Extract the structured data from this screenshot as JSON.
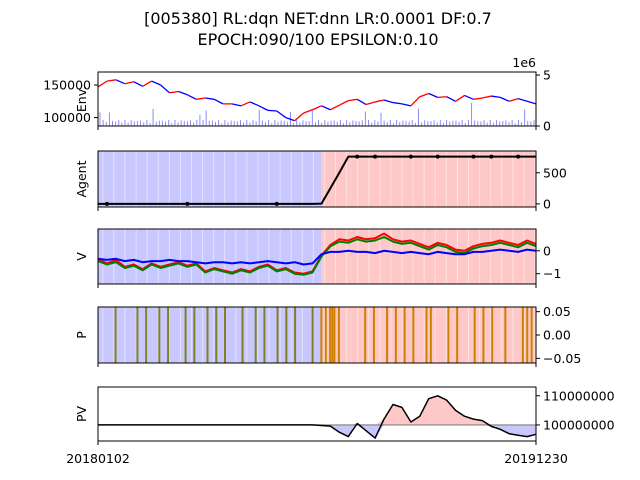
{
  "title_line1": "[005380] RL:dqn NET:dnn LR:0.0001 DF:0.7",
  "title_line2": "EPOCH:090/100 EPSILON:0.10",
  "x_start_label": "20180102",
  "x_end_label": "20191230",
  "chart_data": [
    {
      "type": "line",
      "ylabel": "Env.",
      "yticks": [
        "100000",
        "150000"
      ],
      "y2ticks": [
        "0",
        "5"
      ],
      "y2_offset_label": "1e6",
      "ylim": [
        87000,
        170000
      ],
      "y2lim": [
        0,
        5.3
      ],
      "close_price": [
        147000,
        156000,
        158000,
        152000,
        155000,
        148000,
        156000,
        150000,
        138000,
        140000,
        135000,
        128000,
        130000,
        128000,
        121000,
        121000,
        118000,
        124000,
        118000,
        111000,
        110000,
        100000,
        95000,
        107000,
        112000,
        118000,
        112000,
        119000,
        126000,
        128000,
        120000,
        124000,
        127000,
        123000,
        121000,
        118000,
        132000,
        137000,
        131000,
        132000,
        125000,
        134000,
        128000,
        130000,
        133000,
        131000,
        125000,
        129000,
        125000,
        121000
      ],
      "volume_bars_color": "#8c8cf0",
      "line_colors": [
        "#ff0000",
        "#0000ff"
      ]
    },
    {
      "type": "line",
      "ylabel": "Agent",
      "yticks": [
        "0",
        "500"
      ],
      "ylim": [
        -50,
        850
      ],
      "series": [
        {
          "values": [
            0,
            0,
            0,
            0,
            0,
            0,
            0,
            0,
            0,
            0,
            0,
            0,
            0,
            0,
            0,
            0,
            0,
            0,
            0,
            0,
            0,
            0,
            0,
            0,
            0,
            5,
            250,
            500,
            760,
            760,
            760,
            760,
            760,
            760,
            760,
            760,
            760,
            760,
            760,
            760,
            760,
            760,
            760,
            760,
            760,
            760,
            760,
            760,
            760,
            760
          ],
          "color": "#000000"
        }
      ],
      "background_split_fraction": 0.51,
      "background_colors": [
        "#c8c8ff",
        "#ffc8c8"
      ]
    },
    {
      "type": "line",
      "ylabel": "V",
      "yticks": [
        "0",
        "−1"
      ],
      "ylim": [
        -1.45,
        0.95
      ],
      "series": [
        {
          "color": "#ff0000",
          "values": [
            -0.35,
            -0.55,
            -0.4,
            -0.7,
            -0.6,
            -0.8,
            -0.55,
            -0.7,
            -0.6,
            -0.5,
            -0.65,
            -0.55,
            -0.9,
            -0.75,
            -0.85,
            -0.95,
            -0.8,
            -0.9,
            -0.7,
            -0.6,
            -0.85,
            -0.75,
            -0.95,
            -1.0,
            -0.9,
            -0.2,
            0.25,
            0.5,
            0.45,
            0.6,
            0.5,
            0.55,
            0.75,
            0.5,
            0.4,
            0.45,
            0.3,
            0.15,
            0.35,
            0.25,
            0.05,
            0.0,
            0.2,
            0.3,
            0.35,
            0.45,
            0.35,
            0.25,
            0.45,
            0.3
          ]
        },
        {
          "color": "#008000",
          "values": [
            -0.45,
            -0.6,
            -0.5,
            -0.75,
            -0.65,
            -0.85,
            -0.6,
            -0.75,
            -0.65,
            -0.55,
            -0.7,
            -0.6,
            -0.95,
            -0.8,
            -0.9,
            -1.0,
            -0.85,
            -0.95,
            -0.75,
            -0.65,
            -0.9,
            -0.8,
            -1.0,
            -1.05,
            -0.95,
            -0.25,
            0.2,
            0.4,
            0.35,
            0.5,
            0.4,
            0.45,
            0.6,
            0.4,
            0.3,
            0.35,
            0.2,
            0.05,
            0.25,
            0.15,
            -0.05,
            -0.1,
            0.1,
            0.2,
            0.25,
            0.35,
            0.25,
            0.15,
            0.35,
            0.2
          ]
        },
        {
          "color": "#0000ff",
          "values": [
            -0.35,
            -0.4,
            -0.35,
            -0.45,
            -0.4,
            -0.5,
            -0.45,
            -0.45,
            -0.4,
            -0.45,
            -0.45,
            -0.5,
            -0.55,
            -0.5,
            -0.5,
            -0.55,
            -0.5,
            -0.55,
            -0.5,
            -0.45,
            -0.5,
            -0.55,
            -0.5,
            -0.6,
            -0.55,
            -0.15,
            -0.05,
            -0.05,
            0.0,
            -0.05,
            -0.05,
            -0.1,
            0.0,
            -0.05,
            -0.1,
            -0.05,
            -0.1,
            -0.15,
            -0.05,
            -0.1,
            -0.15,
            -0.15,
            -0.05,
            -0.05,
            0.0,
            0.05,
            0.0,
            -0.05,
            0.05,
            0.0
          ]
        }
      ],
      "background_split_fraction": 0.51,
      "background_colors": [
        "#c8c8ff",
        "#ffc8c8"
      ]
    },
    {
      "type": "bar",
      "ylabel": "P",
      "yticks": [
        "0.05",
        "0.00",
        "−0.05"
      ],
      "ylim": [
        -0.06,
        0.06
      ],
      "action_marks_left": [
        0.04,
        0.09,
        0.11,
        0.14,
        0.16,
        0.2,
        0.22,
        0.25,
        0.27,
        0.29,
        0.33,
        0.36,
        0.38,
        0.41,
        0.43,
        0.45,
        0.49
      ],
      "action_marks_right": [
        0.51,
        0.52,
        0.53,
        0.535,
        0.54,
        0.55,
        0.61,
        0.63,
        0.66,
        0.68,
        0.7,
        0.72,
        0.75,
        0.76,
        0.8,
        0.82,
        0.86,
        0.88,
        0.9,
        0.93,
        0.97,
        0.98,
        0.99
      ],
      "mark_color_left": "#808020",
      "mark_color_right": "#d08000",
      "background_split_fraction": 0.51,
      "background_colors": [
        "#c8c8ff",
        "#ffc8c8"
      ]
    },
    {
      "type": "line",
      "ylabel": "PV",
      "yticks": [
        "110000000",
        "100000000"
      ],
      "ylim": [
        94500000,
        113000000
      ],
      "baseline": 100000000,
      "series": [
        {
          "color": "#000000",
          "values": [
            100000000,
            100000000,
            100000000,
            100000000,
            100000000,
            100000000,
            100000000,
            100000000,
            100000000,
            100000000,
            100000000,
            100000000,
            100000000,
            100000000,
            100000000,
            100000000,
            100000000,
            100000000,
            100000000,
            100000000,
            100000000,
            100000000,
            100000000,
            100000000,
            100000000,
            99800000,
            99600000,
            97500000,
            96000000,
            100500000,
            98000000,
            95500000,
            102000000,
            107000000,
            106000000,
            101000000,
            103000000,
            109000000,
            110000000,
            108500000,
            105000000,
            103000000,
            102000000,
            101500000,
            99500000,
            98500000,
            97000000,
            96500000,
            96000000,
            96800000
          ]
        }
      ],
      "fill_above_color": "#ffc8c8",
      "fill_below_color": "#c8c8ff"
    }
  ]
}
